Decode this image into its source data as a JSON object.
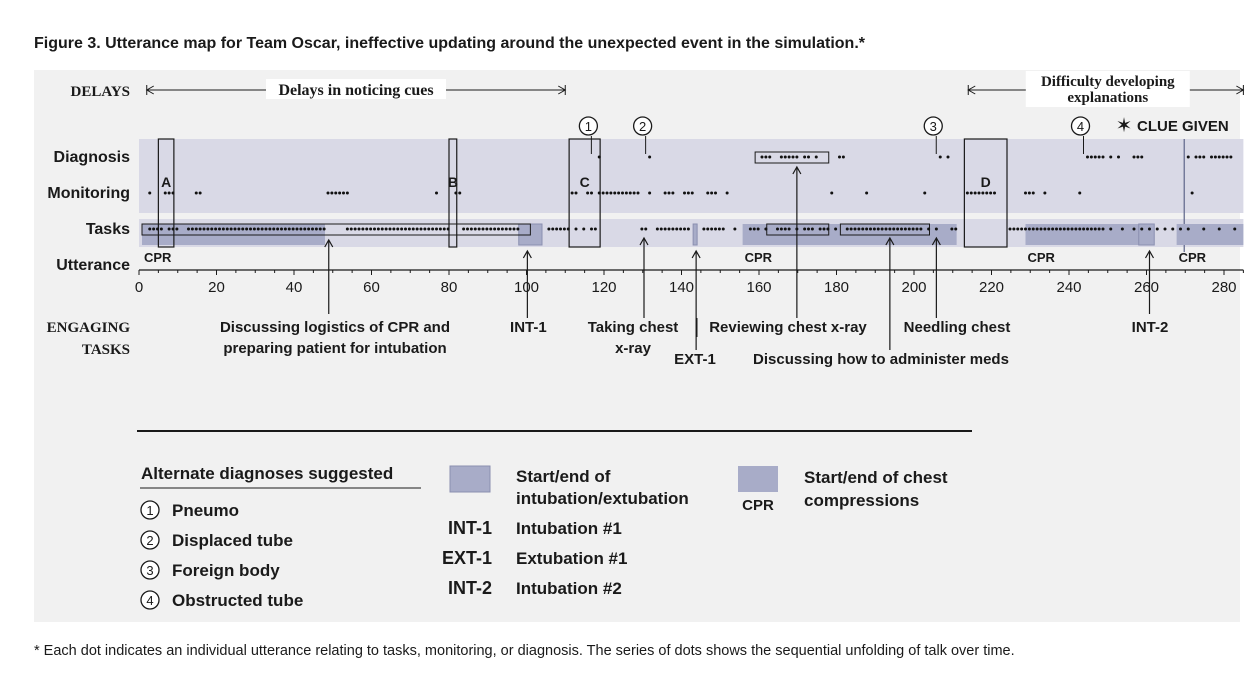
{
  "title": "Figure 3.  Utterance map for Team Oscar, ineffective updating around the unexpected event in the simulation.*",
  "footnote": "* Each dot indicates an individual utterance relating to tasks, monitoring, or diagnosis. The series of dots shows the sequential unfolding of talk over time.",
  "colors": {
    "band": "#d9d9e6",
    "event_fill": "#a8acc8",
    "event_stroke": "#8a8fb0",
    "panel": "#f1f1f1",
    "text": "#1a1a1a"
  },
  "chart_data": {
    "type": "scatter",
    "xlim": [
      0,
      285
    ],
    "xticks": [
      0,
      20,
      40,
      60,
      80,
      100,
      120,
      140,
      160,
      180,
      200,
      220,
      240,
      260,
      280
    ],
    "x_axis_name": "Utterance",
    "rows": [
      "Diagnosis",
      "Monitoring",
      "Tasks"
    ],
    "delays_header": "DELAYS",
    "delay_spans": [
      {
        "label": "Delays in noticing cues",
        "start": 2,
        "end": 110
      },
      {
        "label": "Difficulty developing explanations",
        "start": 214,
        "end": 285
      }
    ],
    "engaging_header": "ENGAGING TASKS",
    "diagnosis_markers": [
      {
        "number": "1",
        "x": 117
      },
      {
        "number": "2",
        "x": 131
      },
      {
        "number": "3",
        "x": 206
      },
      {
        "number": "4",
        "x": 244
      }
    ],
    "clue": {
      "label": "CLUE GIVEN",
      "x": 270
    },
    "boxes": [
      {
        "label": "A",
        "start": 5,
        "end": 9
      },
      {
        "label": "B",
        "start": 80,
        "end": 82
      },
      {
        "label": "C",
        "start": 111,
        "end": 119
      },
      {
        "label": "D",
        "start": 213,
        "end": 224
      }
    ],
    "cpr_periods": [
      {
        "label": "CPR",
        "start": 0,
        "end": 48
      },
      {
        "label": "CPR",
        "start": 155,
        "end": 211
      },
      {
        "label": "CPR",
        "start": 228,
        "end": 261
      },
      {
        "label": "CPR",
        "start": 267,
        "end": 285
      }
    ],
    "intubation_periods": [
      {
        "start": 98,
        "end": 104
      },
      {
        "start": 143,
        "end": 144
      },
      {
        "start": 258,
        "end": 262
      }
    ],
    "task_annotations": [
      {
        "label": "Discussing logistics of CPR and preparing patient for intubation",
        "x": 50
      },
      {
        "label": "INT-1",
        "x": 101
      },
      {
        "label": "Taking chest x-ray",
        "x": 128
      },
      {
        "label": "EXT-1",
        "x": 143
      },
      {
        "label": "Reviewing chest x-ray",
        "x": 169
      },
      {
        "label": "Discussing how to administer meds",
        "x": 193
      },
      {
        "label": "Needling chest",
        "x": 205
      },
      {
        "label": "INT-2",
        "x": 260
      }
    ],
    "legend": {
      "diagnoses_title": "Alternate diagnoses suggested",
      "diagnoses": [
        {
          "number": "1",
          "label": "Pneumo"
        },
        {
          "number": "2",
          "label": "Displaced tube"
        },
        {
          "number": "3",
          "label": "Foreign body"
        },
        {
          "number": "4",
          "label": "Obstructed tube"
        }
      ],
      "intubation_label": "Start/end of intubation/extubation",
      "events": [
        {
          "code": "INT-1",
          "label": "Intubation #1"
        },
        {
          "code": "EXT-1",
          "label": "Extubation #1"
        },
        {
          "code": "INT-2",
          "label": "Intubation #2"
        }
      ],
      "cpr_swatch_label": "CPR",
      "cpr_label": "Start/end of chest compressions"
    },
    "utterances": {
      "diagnosis": [
        118,
        131,
        160,
        161,
        162,
        165,
        166,
        167,
        168,
        169,
        171,
        172,
        174,
        180,
        181,
        206,
        208,
        244,
        245,
        246,
        247,
        248,
        250,
        252,
        256,
        257,
        258,
        270,
        272,
        273,
        274,
        276,
        277,
        278,
        279,
        280,
        281
      ],
      "monitoring": [
        2,
        6,
        7,
        8,
        14,
        15,
        48,
        49,
        50,
        51,
        52,
        53,
        76,
        81,
        82,
        111,
        112,
        115,
        116,
        118,
        119,
        120,
        121,
        122,
        123,
        124,
        125,
        126,
        127,
        128,
        131,
        135,
        136,
        137,
        140,
        141,
        142,
        146,
        147,
        148,
        151,
        178,
        187,
        202,
        213,
        214,
        215,
        216,
        217,
        218,
        219,
        220,
        228,
        229,
        230,
        233,
        242,
        271
      ],
      "tasks": [
        2,
        3,
        4,
        5,
        7,
        8,
        9,
        12,
        13,
        14,
        15,
        16,
        17,
        18,
        19,
        20,
        21,
        22,
        23,
        24,
        25,
        26,
        27,
        28,
        29,
        30,
        31,
        32,
        33,
        34,
        35,
        36,
        37,
        38,
        39,
        40,
        41,
        42,
        43,
        44,
        45,
        46,
        47,
        53,
        54,
        55,
        56,
        57,
        58,
        59,
        60,
        61,
        62,
        63,
        64,
        65,
        66,
        67,
        68,
        69,
        70,
        71,
        72,
        73,
        74,
        75,
        76,
        77,
        78,
        79,
        83,
        84,
        85,
        86,
        87,
        88,
        89,
        90,
        91,
        92,
        93,
        94,
        95,
        96,
        97,
        105,
        106,
        107,
        108,
        109,
        110,
        112,
        114,
        116,
        117,
        129,
        130,
        133,
        134,
        135,
        136,
        137,
        138,
        139,
        140,
        141,
        145,
        146,
        147,
        148,
        149,
        150,
        153,
        157,
        158,
        159,
        161,
        164,
        165,
        166,
        167,
        169,
        171,
        172,
        173,
        175,
        176,
        177,
        179,
        182,
        183,
        184,
        185,
        186,
        187,
        188,
        189,
        190,
        191,
        192,
        193,
        194,
        195,
        196,
        197,
        198,
        199,
        200,
        201,
        203,
        205,
        209,
        210,
        224,
        225,
        226,
        227,
        228,
        229,
        230,
        231,
        232,
        233,
        234,
        235,
        236,
        237,
        238,
        239,
        240,
        241,
        242,
        243,
        244,
        245,
        246,
        247,
        248,
        250,
        253,
        256,
        258,
        260,
        262,
        264,
        266,
        268,
        270,
        274,
        278,
        282
      ]
    }
  }
}
